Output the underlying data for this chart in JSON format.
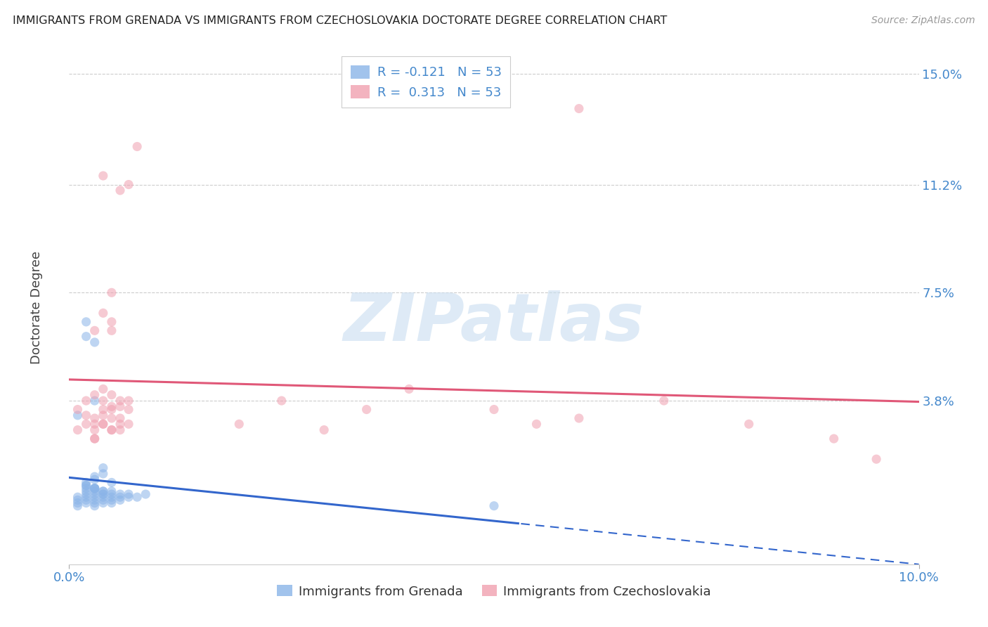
{
  "title": "IMMIGRANTS FROM GRENADA VS IMMIGRANTS FROM CZECHOSLOVAKIA DOCTORATE DEGREE CORRELATION CHART",
  "source": "Source: ZipAtlas.com",
  "ylabel": "Doctorate Degree",
  "ytick_labels": [
    "15.0%",
    "11.2%",
    "7.5%",
    "3.8%"
  ],
  "ytick_values": [
    0.15,
    0.112,
    0.075,
    0.038
  ],
  "xlim": [
    0.0,
    0.1
  ],
  "ylim": [
    -0.018,
    0.158
  ],
  "series1_label": "Immigrants from Grenada",
  "series1_color": "#8ab4e8",
  "series2_label": "Immigrants from Czechoslovakia",
  "series2_color": "#f0a0b0",
  "trendline1_color": "#3366cc",
  "trendline2_color": "#e05878",
  "R1": "-0.121",
  "R2": "0.313",
  "N1": "53",
  "N2": "53",
  "watermark": "ZIPatlas",
  "background_color": "#ffffff",
  "grid_color": "#cccccc",
  "title_color": "#222222",
  "right_tick_color": "#4488cc",
  "scatter_alpha": 0.55,
  "scatter_size": 90,
  "grenada_x": [
    0.001,
    0.001,
    0.001,
    0.001,
    0.002,
    0.002,
    0.002,
    0.002,
    0.002,
    0.002,
    0.003,
    0.003,
    0.003,
    0.003,
    0.003,
    0.003,
    0.003,
    0.004,
    0.004,
    0.004,
    0.004,
    0.004,
    0.005,
    0.005,
    0.005,
    0.005,
    0.006,
    0.006,
    0.006,
    0.007,
    0.007,
    0.008,
    0.009,
    0.002,
    0.003,
    0.002,
    0.001,
    0.003,
    0.004,
    0.002,
    0.003,
    0.005,
    0.003,
    0.004,
    0.002,
    0.003,
    0.004,
    0.003,
    0.05,
    0.002,
    0.003,
    0.005,
    0.004
  ],
  "grenada_y": [
    0.002,
    0.003,
    0.004,
    0.005,
    0.003,
    0.004,
    0.005,
    0.006,
    0.007,
    0.008,
    0.002,
    0.003,
    0.004,
    0.005,
    0.006,
    0.007,
    0.008,
    0.003,
    0.004,
    0.005,
    0.006,
    0.007,
    0.003,
    0.004,
    0.005,
    0.006,
    0.004,
    0.005,
    0.006,
    0.005,
    0.006,
    0.005,
    0.006,
    0.06,
    0.058,
    0.065,
    0.033,
    0.038,
    0.015,
    0.01,
    0.012,
    0.01,
    0.011,
    0.013,
    0.009,
    0.008,
    0.007,
    0.008,
    0.002,
    0.009,
    0.008,
    0.007,
    0.006
  ],
  "czech_x": [
    0.001,
    0.001,
    0.002,
    0.002,
    0.003,
    0.003,
    0.003,
    0.004,
    0.004,
    0.004,
    0.005,
    0.005,
    0.005,
    0.005,
    0.006,
    0.006,
    0.006,
    0.007,
    0.007,
    0.008,
    0.002,
    0.003,
    0.003,
    0.004,
    0.004,
    0.005,
    0.005,
    0.006,
    0.006,
    0.007,
    0.003,
    0.003,
    0.004,
    0.005,
    0.005,
    0.006,
    0.007,
    0.004,
    0.004,
    0.005,
    0.03,
    0.035,
    0.04,
    0.05,
    0.055,
    0.06,
    0.07,
    0.08,
    0.09,
    0.095,
    0.02,
    0.025,
    0.06
  ],
  "czech_y": [
    0.028,
    0.035,
    0.03,
    0.038,
    0.025,
    0.032,
    0.04,
    0.03,
    0.035,
    0.042,
    0.028,
    0.035,
    0.04,
    0.065,
    0.03,
    0.038,
    0.11,
    0.035,
    0.112,
    0.125,
    0.033,
    0.028,
    0.062,
    0.03,
    0.068,
    0.032,
    0.075,
    0.036,
    0.028,
    0.038,
    0.025,
    0.03,
    0.033,
    0.028,
    0.062,
    0.032,
    0.03,
    0.038,
    0.115,
    0.036,
    0.028,
    0.035,
    0.042,
    0.035,
    0.03,
    0.032,
    0.038,
    0.03,
    0.025,
    0.018,
    0.03,
    0.038,
    0.138
  ]
}
